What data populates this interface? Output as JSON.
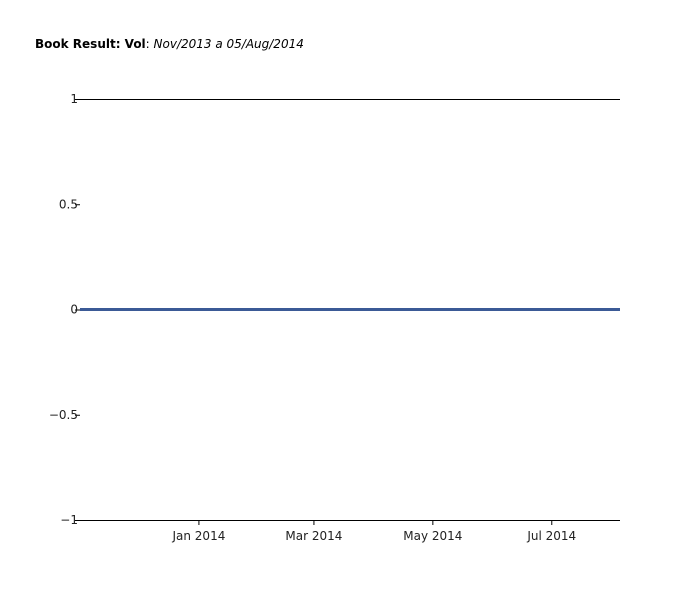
{
  "chart_data": {
    "type": "line",
    "title": {
      "bold": "Book Result: Vol",
      "separator": ": ",
      "italic": "Nov/2013 a 05/Aug/2014"
    },
    "xlabel": "",
    "ylabel": "",
    "x_start": "2013-11-01",
    "x_end": "2014-08-05",
    "xlim": [
      "2013-11-01",
      "2014-08-05"
    ],
    "ylim": [
      -1,
      1
    ],
    "yticks": [
      1,
      0.5,
      0,
      -0.5,
      -1
    ],
    "ytick_labels": [
      "1",
      "0.5",
      "0",
      "−0.5",
      "−1"
    ],
    "xticks": [
      {
        "date": "2014-01-01",
        "label": "Jan 2014"
      },
      {
        "date": "2014-03-01",
        "label": "Mar 2014"
      },
      {
        "date": "2014-05-01",
        "label": "May 2014"
      },
      {
        "date": "2014-07-01",
        "label": "Jul 2014"
      }
    ],
    "series": [
      {
        "color": "#3b5a96",
        "points": [
          {
            "x": "2013-11-01",
            "y": 0
          },
          {
            "x": "2014-08-05",
            "y": 0
          }
        ]
      }
    ],
    "grid": false,
    "legend": "none"
  }
}
